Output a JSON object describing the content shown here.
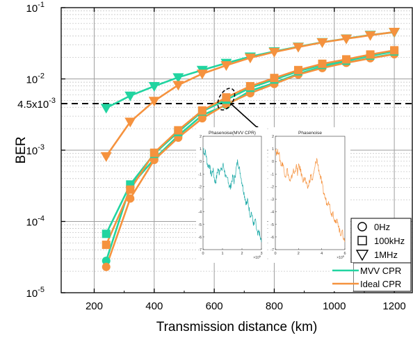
{
  "chart_data": {
    "type": "line",
    "xlabel": "Transmission distance (km)",
    "ylabel": "BER",
    "y_scale": "log",
    "xlim": [
      90,
      1260
    ],
    "ylim": [
      1e-05,
      0.1
    ],
    "grid": true,
    "x_ticks": [
      200,
      400,
      600,
      800,
      1000,
      1200
    ],
    "x_tick_labels": [
      "200",
      "400",
      "600",
      "800",
      "1000",
      "1200"
    ],
    "y_ticks": [
      {
        "value": 1e-05,
        "base": "10",
        "exp": "-5"
      },
      {
        "value": 0.0001,
        "base": "10",
        "exp": "-4"
      },
      {
        "value": 0.001,
        "base": "10",
        "exp": "-3"
      },
      {
        "value": 0.01,
        "base": "10",
        "exp": "-2"
      },
      {
        "value": 0.1,
        "base": "10",
        "exp": "-1"
      }
    ],
    "threshold": {
      "value": 0.0045,
      "label_base": "4.5x10",
      "label_exp": "-3"
    },
    "x": [
      240,
      320,
      400,
      480,
      560,
      640,
      720,
      800,
      880,
      960,
      1040,
      1120,
      1200
    ],
    "series": [
      {
        "method": "MVV CPR",
        "linewidth": "0Hz",
        "marker": "circle",
        "color": "#21d4a0",
        "values": [
          2.8e-05,
          0.00031,
          0.00075,
          0.0016,
          0.0031,
          0.0043,
          0.0068,
          0.0088,
          0.0118,
          0.0148,
          0.017,
          0.0198,
          0.0225
        ]
      },
      {
        "method": "Ideal CPR",
        "linewidth": "0Hz",
        "marker": "circle",
        "color": "#f5923e",
        "values": [
          2.3e-05,
          0.00021,
          0.00073,
          0.0015,
          0.0028,
          0.0044,
          0.0063,
          0.0085,
          0.0115,
          0.0142,
          0.0168,
          0.0195,
          0.0222
        ]
      },
      {
        "method": "MVV CPR",
        "linewidth": "100kHz",
        "marker": "square",
        "color": "#21d4a0",
        "values": [
          6.7e-05,
          0.00033,
          0.00089,
          0.0018,
          0.0035,
          0.0051,
          0.0075,
          0.0098,
          0.0128,
          0.0157,
          0.018,
          0.0212,
          0.0243
        ]
      },
      {
        "method": "Ideal CPR",
        "linewidth": "100kHz",
        "marker": "square",
        "color": "#f5923e",
        "values": [
          4.7e-05,
          0.00028,
          0.00092,
          0.0019,
          0.0036,
          0.0055,
          0.0079,
          0.0103,
          0.0133,
          0.0163,
          0.0188,
          0.022,
          0.0252
        ]
      },
      {
        "method": "MVV CPR",
        "linewidth": "1MHz",
        "marker": "triangle-down",
        "color": "#21d4a0",
        "values": [
          0.0039,
          0.0058,
          0.0079,
          0.0105,
          0.0133,
          0.0167,
          0.0205,
          0.0243,
          0.0283,
          0.0327,
          0.0368,
          0.0414,
          0.0452
        ]
      },
      {
        "method": "Ideal CPR",
        "linewidth": "1MHz",
        "marker": "triangle-down",
        "color": "#f5923e",
        "values": [
          0.00082,
          0.0025,
          0.0049,
          0.0082,
          0.0118,
          0.0155,
          0.0198,
          0.0238,
          0.028,
          0.0325,
          0.0366,
          0.041,
          0.0455
        ]
      }
    ],
    "legend_markers": {
      "placement": "inside-right",
      "entries": [
        {
          "marker": "circle",
          "label": "0Hz"
        },
        {
          "marker": "square",
          "label": "100kHz"
        },
        {
          "marker": "triangle-down",
          "label": "1MHz"
        }
      ]
    },
    "legend_lines": {
      "placement": "bottom-right",
      "entries": [
        {
          "label": "MVV CPR",
          "color": "#21d4a0"
        },
        {
          "label": "Ideal CPR",
          "color": "#f5923e"
        }
      ]
    },
    "insets": [
      {
        "title": "Phasenoise(MVV CPR)",
        "color": "#1ba9a6",
        "xlim": [
          0,
          3
        ],
        "ylim": [
          -7,
          2
        ],
        "x_ticks": [
          "0",
          "1",
          "2",
          "3"
        ],
        "y_ticks": [
          "2",
          "1",
          "0",
          "-1",
          "-2",
          "-3",
          "-4",
          "-5",
          "-6",
          "-7"
        ],
        "x_multiplier": "×10",
        "x_multiplier_exp": "5",
        "trace": [
          1.1,
          0.6,
          0.8,
          0.1,
          -0.4,
          -0.2,
          -0.8,
          -1.1,
          -0.6,
          -1.3,
          -1.7,
          -1.2,
          -0.6,
          -0.9,
          -0.4,
          -0.8,
          -0.2,
          -0.6,
          -1.1,
          -1.5,
          -1.3,
          -1.9,
          -2.1,
          -1.6,
          -1.2,
          -1.6,
          -1.0,
          -0.4,
          0.1,
          -0.5,
          -0.9,
          -1.5,
          -2.0,
          -2.5,
          -3.0,
          -3.4,
          -3.1,
          -3.7,
          -4.3,
          -4.0,
          -4.7,
          -5.1,
          -4.6,
          -5.4,
          -5.9,
          -5.5,
          -6.1,
          -6.4
        ]
      },
      {
        "title": "Phasenoise",
        "color": "#f5923e",
        "xlim": [
          0,
          6
        ],
        "ylim": [
          -7,
          2
        ],
        "x_ticks": [
          "0",
          "2",
          "4",
          "6"
        ],
        "y_ticks": [
          "2",
          "1",
          "0",
          "-1",
          "-2",
          "-3",
          "-4",
          "-5",
          "-6",
          "-7"
        ],
        "x_multiplier": "×10",
        "x_multiplier_exp": "5",
        "trace": [
          1.1,
          0.6,
          0.9,
          0.2,
          -0.3,
          -0.1,
          -0.8,
          -1.1,
          -0.6,
          -1.2,
          -1.7,
          -1.3,
          -0.7,
          -1.0,
          -0.3,
          -0.9,
          -0.3,
          -0.7,
          -1.2,
          -1.5,
          -1.3,
          -1.9,
          -2.1,
          -1.6,
          -1.1,
          -1.5,
          -1.0,
          -0.3,
          0.2,
          -0.4,
          -1.0,
          -1.5,
          -2.1,
          -2.6,
          -3.0,
          -3.4,
          -3.0,
          -3.7,
          -4.2,
          -4.0,
          -4.6,
          -5.0,
          -4.6,
          -5.3,
          -5.8,
          -5.5,
          -6.0,
          -6.4
        ]
      }
    ]
  }
}
